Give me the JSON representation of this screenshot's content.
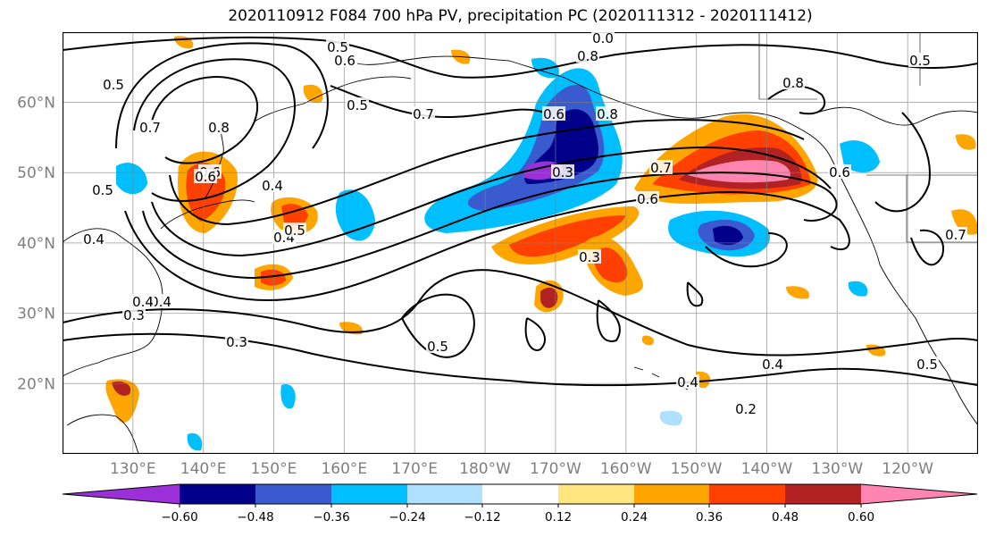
{
  "title": "2020110912 F084 700 hPa PV, precipitation PC (2020111312 - 2020111412)",
  "lat_labels": [
    "60°N",
    "50°N",
    "40°N",
    "30°N",
    "20°N"
  ],
  "lon_labels": [
    "130°E",
    "140°E",
    "150°E",
    "160°E",
    "170°E",
    "180°W",
    "170°W",
    "160°W",
    "150°W",
    "140°W",
    "130°W",
    "120°W"
  ],
  "colorbar": {
    "ticks": [
      "−0.60",
      "−0.48",
      "−0.36",
      "−0.24",
      "−0.12",
      "0.12",
      "0.24",
      "0.36",
      "0.48",
      "0.60"
    ],
    "colors": [
      "#9b30d9",
      "#00008b",
      "#3a5bcf",
      "#00bfff",
      "#b0e0ff",
      "#ffffff",
      "#ffe680",
      "#ffa500",
      "#ff4000",
      "#b22222",
      "#ff85b0"
    ]
  },
  "contour_labels": [
    "0.5",
    "0.6",
    "0.0",
    "0.8",
    "0.5",
    "0.7",
    "0.8",
    "0.7",
    "0.6",
    "0.4",
    "0.8",
    "0.7",
    "0.4",
    "0.6",
    "0.5",
    "0.4",
    "0.4",
    "0.3",
    "0.3",
    "0.5",
    "0.3",
    "0.2",
    "0.4",
    "0.4",
    "0.5",
    "0.7",
    "0.6",
    "0.5",
    "0.8",
    "0.6",
    "0.5",
    "0.3",
    "0.4",
    "0.6",
    "0.5"
  ]
}
